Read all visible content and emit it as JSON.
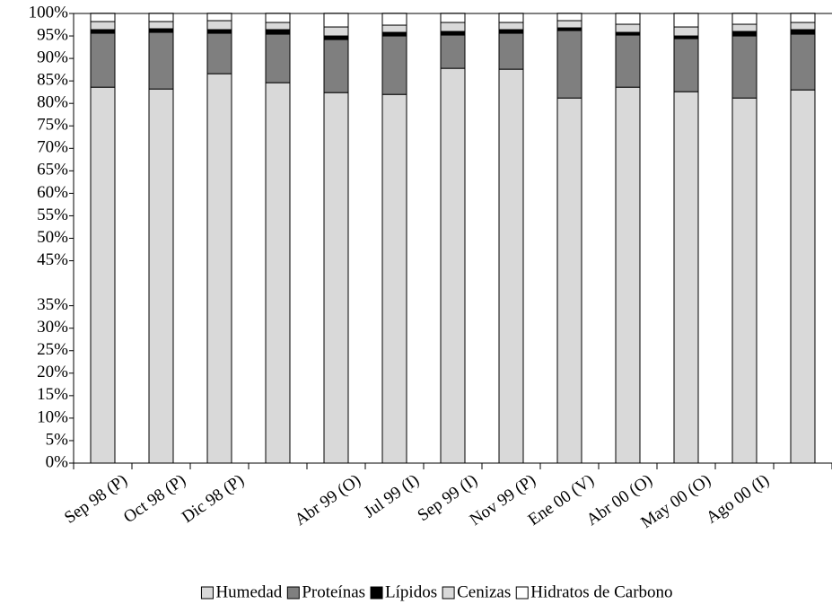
{
  "chart_data": {
    "type": "stacked_bar",
    "categories": [
      "Sep 98 (P)",
      "Oct 98 (P)",
      "Dic 98 (P)",
      null,
      "Abr 99 (O)",
      "Jul 99 (I)",
      "Sep 99 (I)",
      "Nov 99 (P)",
      "Ene 00 (V)",
      "Abr 00 (O)",
      "May 00 (O)",
      "Ago 00 (I)",
      null
    ],
    "series": [
      {
        "name": "Humedad",
        "color": "#d9d9d9",
        "values": [
          83.6,
          83.2,
          86.6,
          84.6,
          82.4,
          82.0,
          87.8,
          87.6,
          81.2,
          83.6,
          82.6,
          81.2,
          83.0
        ]
      },
      {
        "name": "Proteínas",
        "color": "#7f7f7f",
        "values": [
          12.0,
          12.6,
          9.0,
          10.8,
          11.8,
          13.0,
          7.4,
          8.0,
          15.0,
          11.6,
          11.8,
          13.8,
          12.4
        ]
      },
      {
        "name": "Lípidos",
        "color": "#000000",
        "values": [
          0.8,
          0.8,
          0.8,
          1.0,
          0.8,
          0.8,
          0.8,
          0.8,
          0.6,
          0.6,
          0.6,
          1.0,
          1.0
        ]
      },
      {
        "name": "Cenizas",
        "color": "#d9d9d9",
        "values": [
          1.8,
          1.6,
          2.0,
          1.6,
          2.0,
          1.6,
          2.0,
          1.6,
          1.6,
          1.8,
          2.0,
          1.6,
          1.6
        ]
      },
      {
        "name": "Hidratos de Carbono",
        "color": "#ffffff",
        "values": [
          1.8,
          1.8,
          1.6,
          2.0,
          3.0,
          2.6,
          2.0,
          2.0,
          1.6,
          2.4,
          3.0,
          2.4,
          2.0
        ]
      }
    ],
    "ylim": [
      0,
      100
    ],
    "yticks": [
      {
        "value": 0,
        "label": "0%"
      },
      {
        "value": 5,
        "label": "5%"
      },
      {
        "value": 10,
        "label": "10%"
      },
      {
        "value": 15,
        "label": "15%"
      },
      {
        "value": 20,
        "label": "20%"
      },
      {
        "value": 25,
        "label": "25%"
      },
      {
        "value": 30,
        "label": "30%"
      },
      {
        "value": 35,
        "label": "35%"
      },
      {
        "value": 45,
        "label": "45%"
      },
      {
        "value": 50,
        "label": "50%"
      },
      {
        "value": 55,
        "label": "55%"
      },
      {
        "value": 60,
        "label": "60%"
      },
      {
        "value": 65,
        "label": "65%"
      },
      {
        "value": 70,
        "label": "70%"
      },
      {
        "value": 75,
        "label": "75%"
      },
      {
        "value": 80,
        "label": "80%"
      },
      {
        "value": 85,
        "label": "85%"
      },
      {
        "value": 90,
        "label": "90%"
      },
      {
        "value": 95,
        "label": "95%"
      },
      {
        "value": 100,
        "label": "100%"
      }
    ],
    "legend": "bottom"
  }
}
